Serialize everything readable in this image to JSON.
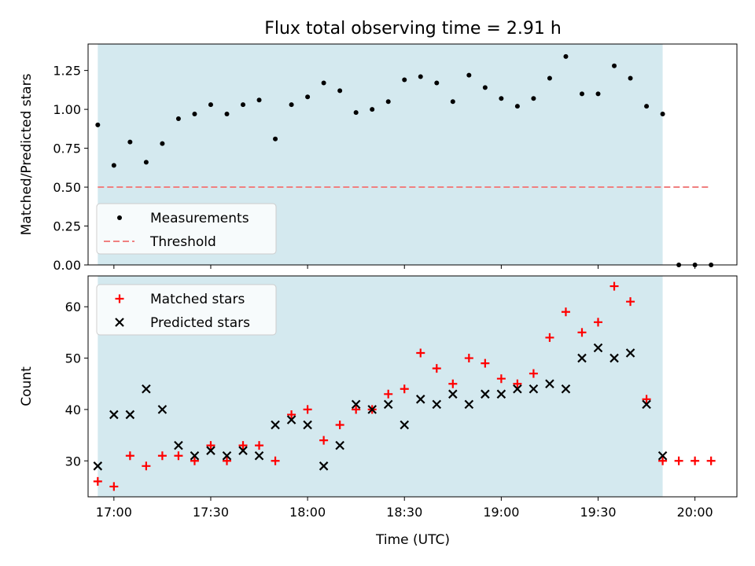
{
  "figure": {
    "title": "Flux total observing time = 2.91 h",
    "x_label": "Time (UTC)",
    "x_range": [
      "16:52",
      "20:13"
    ],
    "x_ticks": [
      "17:00",
      "17:30",
      "18:00",
      "18:30",
      "19:00",
      "19:30",
      "20:00"
    ],
    "observing_window": {
      "start": "16:55",
      "end": "19:50",
      "color": "#d4e9ef"
    }
  },
  "chart_data": [
    {
      "type": "scatter",
      "ylabel": "Matched/Predicted stars",
      "ylim": [
        0,
        1.42
      ],
      "y_ticks": [
        "0.00",
        "0.25",
        "0.50",
        "0.75",
        "1.00",
        "1.25"
      ],
      "legend_position": "lower-left",
      "series": [
        {
          "name": "Measurements",
          "marker": "dot",
          "color": "#000000",
          "points": [
            [
              "16:55",
              0.9
            ],
            [
              "17:00",
              0.64
            ],
            [
              "17:05",
              0.79
            ],
            [
              "17:10",
              0.66
            ],
            [
              "17:15",
              0.78
            ],
            [
              "17:20",
              0.94
            ],
            [
              "17:25",
              0.97
            ],
            [
              "17:30",
              1.03
            ],
            [
              "17:35",
              0.97
            ],
            [
              "17:40",
              1.03
            ],
            [
              "17:45",
              1.06
            ],
            [
              "17:50",
              0.81
            ],
            [
              "17:55",
              1.03
            ],
            [
              "18:00",
              1.08
            ],
            [
              "18:05",
              1.17
            ],
            [
              "18:10",
              1.12
            ],
            [
              "18:15",
              0.98
            ],
            [
              "18:20",
              1.0
            ],
            [
              "18:25",
              1.05
            ],
            [
              "18:30",
              1.19
            ],
            [
              "18:35",
              1.21
            ],
            [
              "18:40",
              1.17
            ],
            [
              "18:45",
              1.05
            ],
            [
              "18:50",
              1.22
            ],
            [
              "18:55",
              1.14
            ],
            [
              "19:00",
              1.07
            ],
            [
              "19:05",
              1.02
            ],
            [
              "19:10",
              1.07
            ],
            [
              "19:15",
              1.2
            ],
            [
              "19:20",
              1.34
            ],
            [
              "19:25",
              1.1
            ],
            [
              "19:30",
              1.1
            ],
            [
              "19:35",
              1.28
            ],
            [
              "19:40",
              1.2
            ],
            [
              "19:45",
              1.02
            ],
            [
              "19:50",
              0.97
            ],
            [
              "19:55",
              0.0
            ],
            [
              "20:00",
              0.0
            ],
            [
              "20:05",
              0.0
            ]
          ]
        },
        {
          "name": "Threshold",
          "style": "dashed",
          "color": "#f08080",
          "points": [
            [
              "16:55",
              0.5
            ],
            [
              "20:05",
              0.5
            ]
          ]
        }
      ]
    },
    {
      "type": "scatter",
      "ylabel": "Count",
      "ylim": [
        23,
        66
      ],
      "y_ticks": [
        "30",
        "40",
        "50",
        "60"
      ],
      "legend_position": "upper-left",
      "series": [
        {
          "name": "Matched stars",
          "marker": "plus",
          "color": "#ff0000",
          "points": [
            [
              "16:55",
              26
            ],
            [
              "17:00",
              25
            ],
            [
              "17:05",
              31
            ],
            [
              "17:10",
              29
            ],
            [
              "17:15",
              31
            ],
            [
              "17:20",
              31
            ],
            [
              "17:25",
              30
            ],
            [
              "17:30",
              33
            ],
            [
              "17:35",
              30
            ],
            [
              "17:40",
              33
            ],
            [
              "17:45",
              33
            ],
            [
              "17:50",
              30
            ],
            [
              "17:55",
              39
            ],
            [
              "18:00",
              40
            ],
            [
              "18:05",
              34
            ],
            [
              "18:10",
              37
            ],
            [
              "18:15",
              40
            ],
            [
              "18:20",
              40
            ],
            [
              "18:25",
              43
            ],
            [
              "18:30",
              44
            ],
            [
              "18:35",
              51
            ],
            [
              "18:40",
              48
            ],
            [
              "18:45",
              45
            ],
            [
              "18:50",
              50
            ],
            [
              "18:55",
              49
            ],
            [
              "19:00",
              46
            ],
            [
              "19:05",
              45
            ],
            [
              "19:10",
              47
            ],
            [
              "19:15",
              54
            ],
            [
              "19:20",
              59
            ],
            [
              "19:25",
              55
            ],
            [
              "19:30",
              57
            ],
            [
              "19:35",
              64
            ],
            [
              "19:40",
              61
            ],
            [
              "19:45",
              42
            ],
            [
              "19:50",
              30
            ],
            [
              "19:55",
              30
            ],
            [
              "20:00",
              30
            ],
            [
              "20:05",
              30
            ]
          ]
        },
        {
          "name": "Predicted stars",
          "marker": "cross",
          "color": "#000000",
          "points": [
            [
              "16:55",
              29
            ],
            [
              "17:00",
              39
            ],
            [
              "17:05",
              39
            ],
            [
              "17:10",
              44
            ],
            [
              "17:15",
              40
            ],
            [
              "17:20",
              33
            ],
            [
              "17:25",
              31
            ],
            [
              "17:30",
              32
            ],
            [
              "17:35",
              31
            ],
            [
              "17:40",
              32
            ],
            [
              "17:45",
              31
            ],
            [
              "17:50",
              37
            ],
            [
              "17:55",
              38
            ],
            [
              "18:00",
              37
            ],
            [
              "18:05",
              29
            ],
            [
              "18:10",
              33
            ],
            [
              "18:15",
              41
            ],
            [
              "18:20",
              40
            ],
            [
              "18:25",
              41
            ],
            [
              "18:30",
              37
            ],
            [
              "18:35",
              42
            ],
            [
              "18:40",
              41
            ],
            [
              "18:45",
              43
            ],
            [
              "18:50",
              41
            ],
            [
              "18:55",
              43
            ],
            [
              "19:00",
              43
            ],
            [
              "19:05",
              44
            ],
            [
              "19:10",
              44
            ],
            [
              "19:15",
              45
            ],
            [
              "19:20",
              44
            ],
            [
              "19:25",
              50
            ],
            [
              "19:30",
              52
            ],
            [
              "19:35",
              50
            ],
            [
              "19:40",
              51
            ],
            [
              "19:45",
              41
            ],
            [
              "19:50",
              31
            ]
          ]
        }
      ]
    }
  ]
}
